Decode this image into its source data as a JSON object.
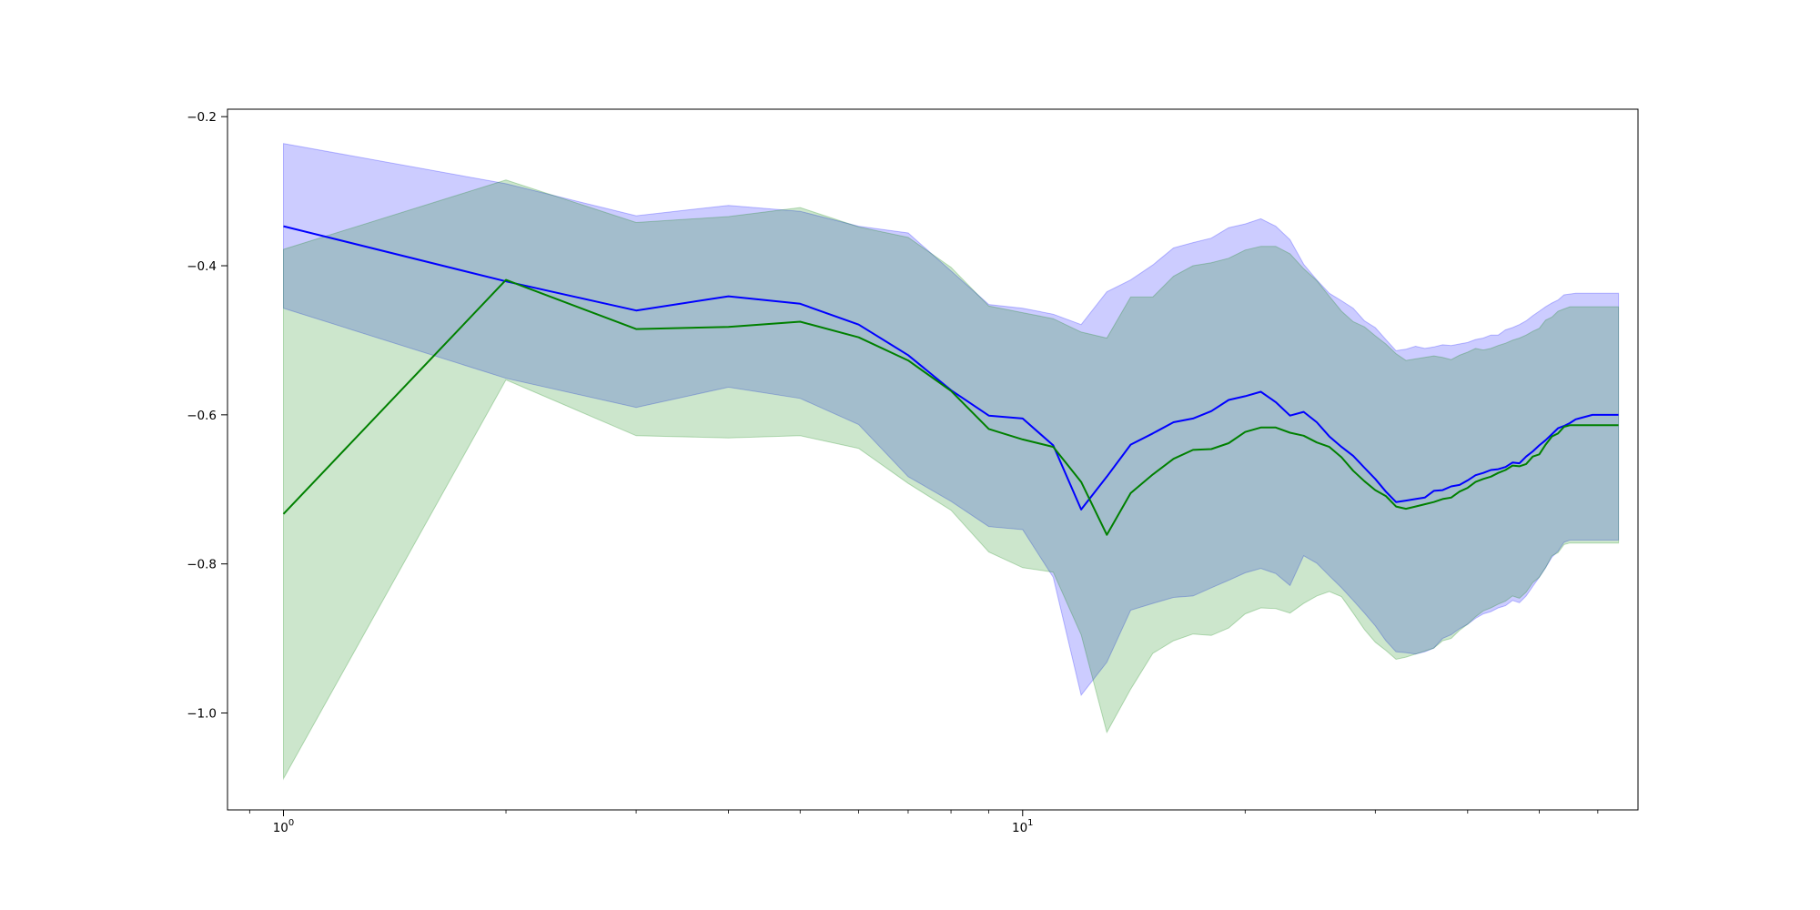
{
  "chart_data": {
    "type": "line",
    "title": "",
    "xlabel": "",
    "ylabel": "",
    "x_scale": "log",
    "xlim": [
      0.84,
      68
    ],
    "ylim": [
      -1.13,
      -0.19
    ],
    "grid": false,
    "x_tick_labels": [
      {
        "value": 1,
        "mantissa": "10",
        "exponent": "0"
      },
      {
        "value": 10,
        "mantissa": "10",
        "exponent": "1"
      }
    ],
    "y_ticks": [
      {
        "value": -0.2,
        "label": "−0.2"
      },
      {
        "value": -0.4,
        "label": "−0.4"
      },
      {
        "value": -0.6,
        "label": "−0.6"
      },
      {
        "value": -0.8,
        "label": "−0.8"
      },
      {
        "value": -1.0,
        "label": "−1.0"
      }
    ],
    "series": [
      {
        "color": "#0000ff",
        "band_color": "#0000ff",
        "x": [
          1,
          2,
          3,
          4,
          5,
          6,
          7,
          8,
          9,
          10,
          11,
          12,
          13,
          14,
          15,
          16,
          17,
          18,
          19,
          20,
          21,
          22,
          23,
          24,
          25,
          26,
          27,
          28,
          29,
          30,
          31,
          32,
          33,
          34,
          35,
          36,
          37,
          38,
          39,
          40,
          41,
          42,
          43,
          44,
          45,
          46,
          47,
          48,
          49,
          50,
          51,
          52,
          53,
          54,
          55,
          56,
          57,
          58,
          59,
          60,
          61,
          62,
          63,
          64
        ],
        "values": [
          -0.347,
          -0.421,
          -0.46,
          -0.441,
          -0.451,
          -0.479,
          -0.52,
          -0.567,
          -0.601,
          -0.605,
          -0.641,
          -0.727,
          -0.683,
          -0.64,
          -0.625,
          -0.61,
          -0.605,
          -0.595,
          -0.58,
          -0.575,
          -0.569,
          -0.583,
          -0.601,
          -0.596,
          -0.61,
          -0.629,
          -0.643,
          -0.655,
          -0.671,
          -0.686,
          -0.703,
          -0.717,
          -0.715,
          -0.713,
          -0.711,
          -0.702,
          -0.701,
          -0.696,
          -0.694,
          -0.688,
          -0.681,
          -0.678,
          -0.674,
          -0.673,
          -0.67,
          -0.664,
          -0.665,
          -0.656,
          -0.649,
          -0.641,
          -0.634,
          -0.626,
          -0.618,
          -0.615,
          -0.611,
          -0.606,
          -0.604,
          -0.602,
          -0.6,
          -0.6,
          -0.6,
          -0.6,
          -0.6,
          -0.6
        ],
        "upper": [
          -0.236,
          -0.29,
          -0.333,
          -0.319,
          -0.327,
          -0.347,
          -0.356,
          -0.407,
          -0.452,
          -0.457,
          -0.465,
          -0.479,
          -0.435,
          -0.419,
          -0.399,
          -0.376,
          -0.369,
          -0.363,
          -0.349,
          -0.344,
          -0.337,
          -0.347,
          -0.365,
          -0.398,
          -0.419,
          -0.437,
          -0.447,
          -0.457,
          -0.474,
          -0.483,
          -0.499,
          -0.514,
          -0.512,
          -0.508,
          -0.511,
          -0.509,
          -0.506,
          -0.507,
          -0.505,
          -0.503,
          -0.499,
          -0.497,
          -0.493,
          -0.493,
          -0.486,
          -0.483,
          -0.479,
          -0.474,
          -0.467,
          -0.461,
          -0.455,
          -0.45,
          -0.446,
          -0.439,
          -0.438,
          -0.437,
          -0.437,
          -0.437,
          -0.437,
          -0.437,
          -0.437,
          -0.437,
          -0.437,
          -0.437
        ],
        "lower": [
          -0.457,
          -0.551,
          -0.59,
          -0.563,
          -0.578,
          -0.613,
          -0.683,
          -0.716,
          -0.75,
          -0.754,
          -0.818,
          -0.976,
          -0.932,
          -0.862,
          -0.853,
          -0.845,
          -0.843,
          -0.832,
          -0.822,
          -0.812,
          -0.806,
          -0.813,
          -0.829,
          -0.789,
          -0.799,
          -0.816,
          -0.832,
          -0.849,
          -0.866,
          -0.883,
          -0.903,
          -0.918,
          -0.919,
          -0.921,
          -0.918,
          -0.913,
          -0.9,
          -0.895,
          -0.887,
          -0.881,
          -0.873,
          -0.867,
          -0.864,
          -0.859,
          -0.856,
          -0.849,
          -0.852,
          -0.843,
          -0.83,
          -0.818,
          -0.805,
          -0.791,
          -0.783,
          -0.771,
          -0.768,
          -0.768,
          -0.768,
          -0.768,
          -0.768,
          -0.768,
          -0.768,
          -0.768,
          -0.768,
          -0.768
        ]
      },
      {
        "color": "#008000",
        "band_color": "#008000",
        "x": [
          1,
          2,
          3,
          4,
          5,
          6,
          7,
          8,
          9,
          10,
          11,
          12,
          13,
          14,
          15,
          16,
          17,
          18,
          19,
          20,
          21,
          22,
          23,
          24,
          25,
          26,
          27,
          28,
          29,
          30,
          31,
          32,
          33,
          34,
          35,
          36,
          37,
          38,
          39,
          40,
          41,
          42,
          43,
          44,
          45,
          46,
          47,
          48,
          49,
          50,
          51,
          52,
          53,
          54,
          55,
          56,
          57,
          58,
          59,
          60,
          61,
          62,
          63,
          64
        ],
        "values": [
          -0.733,
          -0.419,
          -0.485,
          -0.482,
          -0.475,
          -0.496,
          -0.527,
          -0.568,
          -0.619,
          -0.633,
          -0.643,
          -0.69,
          -0.761,
          -0.705,
          -0.68,
          -0.659,
          -0.647,
          -0.646,
          -0.638,
          -0.623,
          -0.617,
          -0.617,
          -0.624,
          -0.628,
          -0.637,
          -0.643,
          -0.657,
          -0.675,
          -0.689,
          -0.701,
          -0.709,
          -0.723,
          -0.726,
          -0.723,
          -0.72,
          -0.717,
          -0.713,
          -0.711,
          -0.703,
          -0.698,
          -0.69,
          -0.686,
          -0.683,
          -0.678,
          -0.674,
          -0.668,
          -0.669,
          -0.666,
          -0.656,
          -0.653,
          -0.64,
          -0.629,
          -0.625,
          -0.616,
          -0.614,
          -0.614,
          -0.614,
          -0.614,
          -0.614,
          -0.614,
          -0.614,
          -0.614,
          -0.614,
          -0.614
        ],
        "upper": [
          -0.378,
          -0.285,
          -0.342,
          -0.334,
          -0.322,
          -0.348,
          -0.362,
          -0.402,
          -0.454,
          -0.463,
          -0.471,
          -0.489,
          -0.497,
          -0.442,
          -0.442,
          -0.414,
          -0.4,
          -0.396,
          -0.39,
          -0.379,
          -0.374,
          -0.374,
          -0.384,
          -0.404,
          -0.42,
          -0.441,
          -0.461,
          -0.475,
          -0.482,
          -0.494,
          -0.505,
          -0.518,
          -0.527,
          -0.525,
          -0.523,
          -0.521,
          -0.523,
          -0.526,
          -0.52,
          -0.516,
          -0.511,
          -0.513,
          -0.511,
          -0.507,
          -0.504,
          -0.5,
          -0.497,
          -0.493,
          -0.488,
          -0.484,
          -0.473,
          -0.469,
          -0.461,
          -0.458,
          -0.455,
          -0.455,
          -0.455,
          -0.455,
          -0.455,
          -0.455,
          -0.455,
          -0.455,
          -0.455,
          -0.455
        ],
        "lower": [
          -1.088,
          -0.553,
          -0.628,
          -0.631,
          -0.628,
          -0.645,
          -0.692,
          -0.728,
          -0.784,
          -0.805,
          -0.811,
          -0.895,
          -1.026,
          -0.968,
          -0.92,
          -0.903,
          -0.894,
          -0.896,
          -0.886,
          -0.867,
          -0.859,
          -0.86,
          -0.866,
          -0.853,
          -0.843,
          -0.837,
          -0.844,
          -0.866,
          -0.888,
          -0.905,
          -0.916,
          -0.928,
          -0.925,
          -0.921,
          -0.917,
          -0.913,
          -0.903,
          -0.9,
          -0.889,
          -0.881,
          -0.871,
          -0.863,
          -0.859,
          -0.854,
          -0.85,
          -0.843,
          -0.846,
          -0.838,
          -0.825,
          -0.818,
          -0.805,
          -0.789,
          -0.785,
          -0.774,
          -0.772,
          -0.772,
          -0.772,
          -0.772,
          -0.772,
          -0.772,
          -0.772,
          -0.772,
          -0.772,
          -0.772
        ]
      }
    ]
  }
}
